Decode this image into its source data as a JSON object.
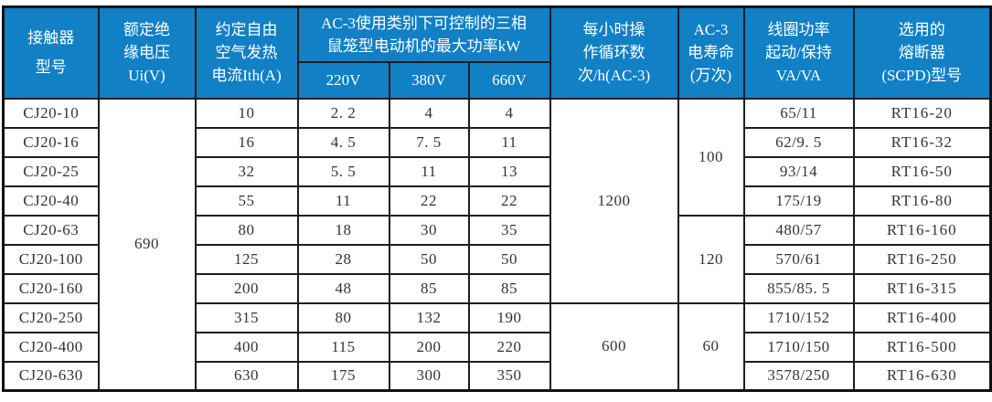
{
  "colors": {
    "header_bg": "#1180c5",
    "header_text": "#ffffff",
    "border": "#1d1d1d",
    "body_text": "#343434"
  },
  "table": {
    "header": {
      "model": [
        "接触器",
        "型号"
      ],
      "insulation_voltage": [
        "额定绝",
        "缘电压",
        "Ui(V)"
      ],
      "thermal_current": [
        "约定自由",
        "空气发热",
        "电流Ith(A)"
      ],
      "power_group": [
        "AC-3使用类别下可控制的三相",
        "鼠笼型电动机的最大功率kW"
      ],
      "power_subcols": [
        "220V",
        "380V",
        "660V"
      ],
      "cycles": [
        "每小时操",
        "作循环数",
        "次/h(AC-3)"
      ],
      "life": [
        "AC-3",
        "电寿命",
        "(万次)"
      ],
      "coil": [
        "线圈功率",
        "起动/保持",
        "VA/VA"
      ],
      "fuse": [
        "选用的",
        "熔断器",
        "(SCPD)型号"
      ]
    },
    "merged": {
      "ui_voltage": "690",
      "cycles_high": "1200",
      "cycles_low": "600",
      "life_100": "100",
      "life_120": "120",
      "life_60": "60"
    },
    "rows": [
      {
        "model": "CJ20-10",
        "ith": "10",
        "p220": "2. 2",
        "p380": "4",
        "p660": "4",
        "coil": "65/11",
        "fuse": "RT16-20"
      },
      {
        "model": "CJ20-16",
        "ith": "16",
        "p220": "4. 5",
        "p380": "7. 5",
        "p660": "11",
        "coil": "62/9. 5",
        "fuse": "RT16-32"
      },
      {
        "model": "CJ20-25",
        "ith": "32",
        "p220": "5. 5",
        "p380": "11",
        "p660": "13",
        "coil": "93/14",
        "fuse": "RT16-50"
      },
      {
        "model": "CJ20-40",
        "ith": "55",
        "p220": "11",
        "p380": "22",
        "p660": "22",
        "coil": "175/19",
        "fuse": "RT16-80"
      },
      {
        "model": "CJ20-63",
        "ith": "80",
        "p220": "18",
        "p380": "30",
        "p660": "35",
        "coil": "480/57",
        "fuse": "RT16-160"
      },
      {
        "model": "CJ20-100",
        "ith": "125",
        "p220": "28",
        "p380": "50",
        "p660": "50",
        "coil": "570/61",
        "fuse": "RT16-250"
      },
      {
        "model": "CJ20-160",
        "ith": "200",
        "p220": "48",
        "p380": "85",
        "p660": "85",
        "coil": "855/85. 5",
        "fuse": "RT16-315"
      },
      {
        "model": "CJ20-250",
        "ith": "315",
        "p220": "80",
        "p380": "132",
        "p660": "190",
        "coil": "1710/152",
        "fuse": "RT16-400"
      },
      {
        "model": "CJ20-400",
        "ith": "400",
        "p220": "115",
        "p380": "200",
        "p660": "220",
        "coil": "1710/150",
        "fuse": "RT16-500"
      },
      {
        "model": "CJ20-630",
        "ith": "630",
        "p220": "175",
        "p380": "300",
        "p660": "350",
        "coil": "3578/250",
        "fuse": "RT16-630"
      }
    ]
  }
}
